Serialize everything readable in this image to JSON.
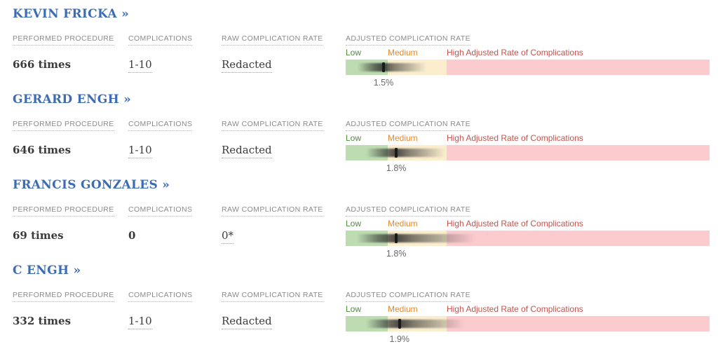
{
  "headers": {
    "performed": "PERFORMED PROCEDURE",
    "complications": "COMPLICATIONS",
    "raw": "RAW COMPLICATION RATE",
    "adjusted": "ADJUSTED COMPLICATION RATE"
  },
  "zone_labels": {
    "low": "Low",
    "medium": "Medium",
    "high": "High Adjusted Rate of Complications"
  },
  "colors": {
    "name_blue": "#3c6cb4",
    "header_gray": "#8b8b8b",
    "value_dark": "#3b3b3b",
    "low_text": "#52893f",
    "medium_text": "#df8a33",
    "high_text": "#c5534b",
    "zone_low_bg": "#bedcb2",
    "zone_medium_bg": "#faeecf",
    "zone_high_bg": "#fbcbce",
    "tick_black": "#1a1a1a",
    "pct_gray": "#696969"
  },
  "surgeons": [
    {
      "name": "KEVIN FRICKA »",
      "performed": "666 times",
      "complications": "1-10",
      "complications_underlined": true,
      "raw_rate": "Redacted",
      "raw_rate_underlined": true,
      "adjusted_rate": "1.5%"
    },
    {
      "name": "GERARD ENGH »",
      "performed": "646 times",
      "complications": "1-10",
      "complications_underlined": true,
      "raw_rate": "Redacted",
      "raw_rate_underlined": true,
      "adjusted_rate": "1.8%"
    },
    {
      "name": "FRANCIS GONZALES »",
      "performed": "69 times",
      "complications": "0",
      "complications_underlined": false,
      "raw_rate": "0*",
      "raw_rate_underlined": true,
      "adjusted_rate": "1.8%"
    },
    {
      "name": "C ENGH »",
      "performed": "332 times",
      "complications": "1-10",
      "complications_underlined": true,
      "raw_rate": "Redacted",
      "raw_rate_underlined": true,
      "adjusted_rate": "1.9%"
    }
  ],
  "chart_data": {
    "type": "bar",
    "title": "ADJUSTED COMPLICATION RATE",
    "note": "Horizontal zone chart per surgeon: point estimate tick with fuzzy confidence-interval band over Low/Medium/High zones; positions are % of bar width",
    "zones": [
      {
        "label": "Low",
        "start_pct": 0,
        "end_pct": 11.56,
        "color": "#bedcb2"
      },
      {
        "label": "Medium",
        "start_pct": 11.56,
        "end_pct": 27.74,
        "color": "#faeecf"
      },
      {
        "label": "High Adjusted Rate of Complications",
        "start_pct": 27.74,
        "end_pct": 100,
        "color": "#fbcbce"
      }
    ],
    "series": [
      {
        "name": "KEVIN FRICKA",
        "adjusted_rate_pct": 1.5,
        "label": "1.5%",
        "tick_pct": 10.4,
        "ci_start_pct": 3.3,
        "ci_end_pct": 22.2
      },
      {
        "name": "GERARD ENGH",
        "adjusted_rate_pct": 1.8,
        "label": "1.8%",
        "tick_pct": 13.9,
        "ci_start_pct": 5.6,
        "ci_end_pct": 27.4
      },
      {
        "name": "FRANCIS GONZALES",
        "adjusted_rate_pct": 1.8,
        "label": "1.8%",
        "tick_pct": 13.9,
        "ci_start_pct": 3.0,
        "ci_end_pct": 35.6
      },
      {
        "name": "C ENGH",
        "adjusted_rate_pct": 1.9,
        "label": "1.9%",
        "tick_pct": 14.8,
        "ci_start_pct": 5.6,
        "ci_end_pct": 32.6
      }
    ]
  }
}
